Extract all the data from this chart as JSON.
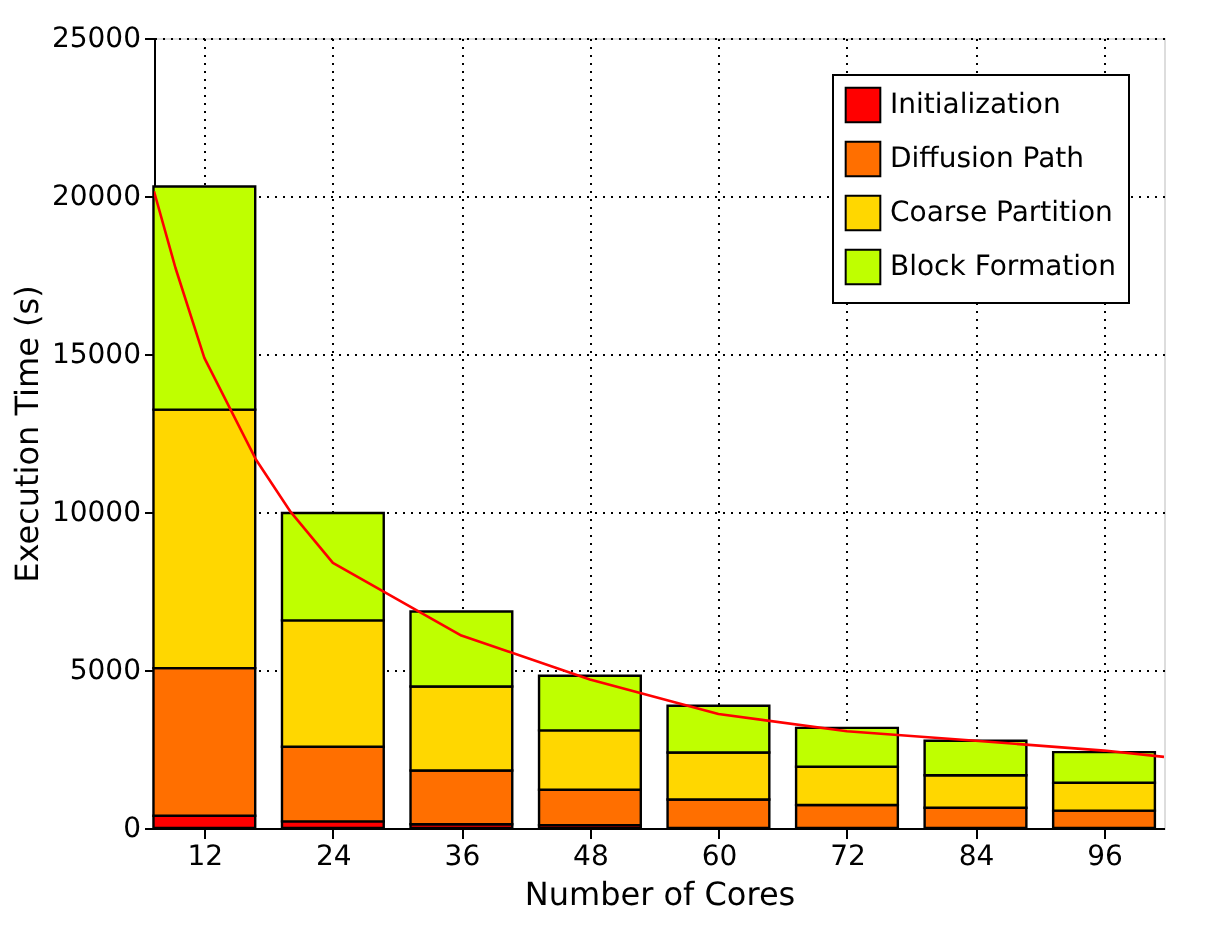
{
  "chart_data": {
    "type": "bar",
    "stacked": true,
    "xlabel": "Number of Cores",
    "ylabel": "Execution Time (s)",
    "x": [
      12,
      24,
      36,
      48,
      60,
      72,
      84,
      96
    ],
    "series": [
      {
        "name": "Initialization",
        "color": "#ff0000",
        "values": [
          390,
          210,
          120,
          90,
          null,
          null,
          null,
          null
        ]
      },
      {
        "name": "Diffusion Path",
        "color": "#ff6f00",
        "values": [
          4670,
          2360,
          1700,
          1120,
          900,
          730,
          640,
          550
        ]
      },
      {
        "name": "Coarse Partition",
        "color": "#ffd700",
        "values": [
          8180,
          4000,
          2660,
          1880,
          1490,
          1210,
          1030,
          880
        ]
      },
      {
        "name": "Block Formation",
        "color": "#bfff00",
        "values": [
          7060,
          3400,
          2370,
          1730,
          1480,
          1230,
          1090,
          970
        ]
      },
      {
        "type": "line",
        "color": "#ff0000",
        "x": [
          7.3,
          9.3,
          12,
          16.8,
          20,
          24,
          36,
          48,
          60,
          72,
          84,
          96,
          101.6
        ],
        "values": [
          20150,
          17730,
          14880,
          11670,
          10030,
          8390,
          6090,
          4700,
          3610,
          3060,
          2760,
          2450,
          2250
        ]
      }
    ],
    "xlim": [
      7.3,
      101.6
    ],
    "xticks": [
      12,
      24,
      36,
      48,
      60,
      72,
      84,
      96
    ],
    "ylim": [
      0,
      25000
    ],
    "yticks": [
      0,
      5000,
      10000,
      15000,
      20000,
      25000
    ],
    "grid": true,
    "legend": "top right"
  }
}
